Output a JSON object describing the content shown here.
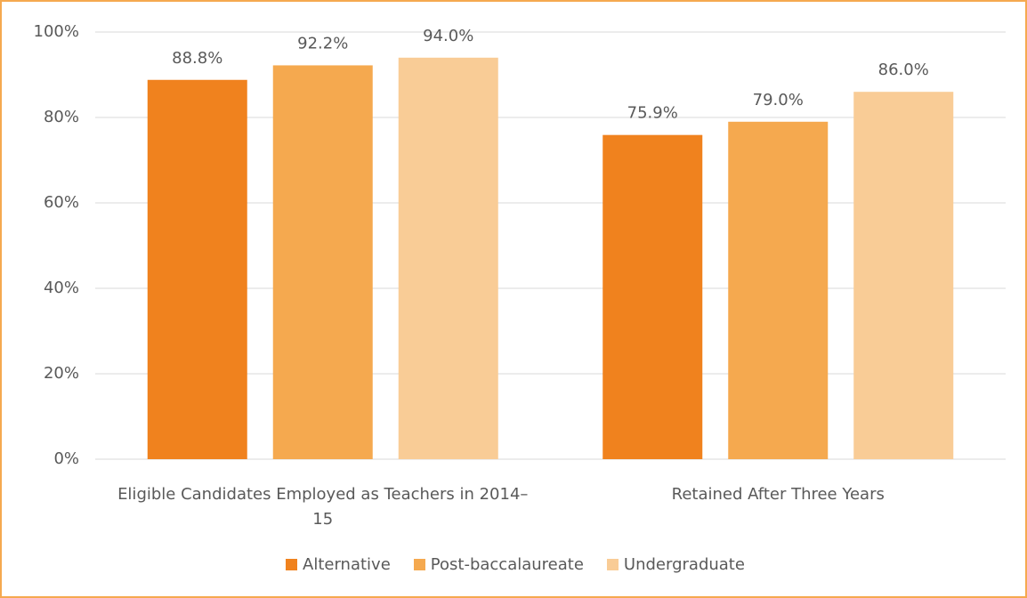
{
  "chart_data": {
    "type": "bar",
    "categories": [
      "Eligible Candidates Employed as Teachers in 2014–15",
      "Retained After Three Years"
    ],
    "series": [
      {
        "name": "Alternative",
        "color": "#f0821e",
        "values": [
          88.8,
          75.9
        ],
        "value_labels": [
          "88.8%",
          "75.9%"
        ]
      },
      {
        "name": "Post-baccalaureate",
        "color": "#f5a94f",
        "values": [
          92.2,
          79.0
        ],
        "value_labels": [
          "92.2%",
          "79.0%"
        ]
      },
      {
        "name": "Undergraduate",
        "color": "#f9cc96",
        "values": [
          94.0,
          86.0
        ],
        "value_labels": [
          "94.0%",
          "86.0%"
        ]
      }
    ],
    "ylim": [
      0,
      100
    ],
    "yticks": [
      {
        "value": 0,
        "label": "0%"
      },
      {
        "value": 20,
        "label": "20%"
      },
      {
        "value": 40,
        "label": "40%"
      },
      {
        "value": 60,
        "label": "60%"
      },
      {
        "value": 80,
        "label": "80%"
      },
      {
        "value": 100,
        "label": "100%"
      }
    ],
    "grid": true,
    "legend": "bottom"
  }
}
